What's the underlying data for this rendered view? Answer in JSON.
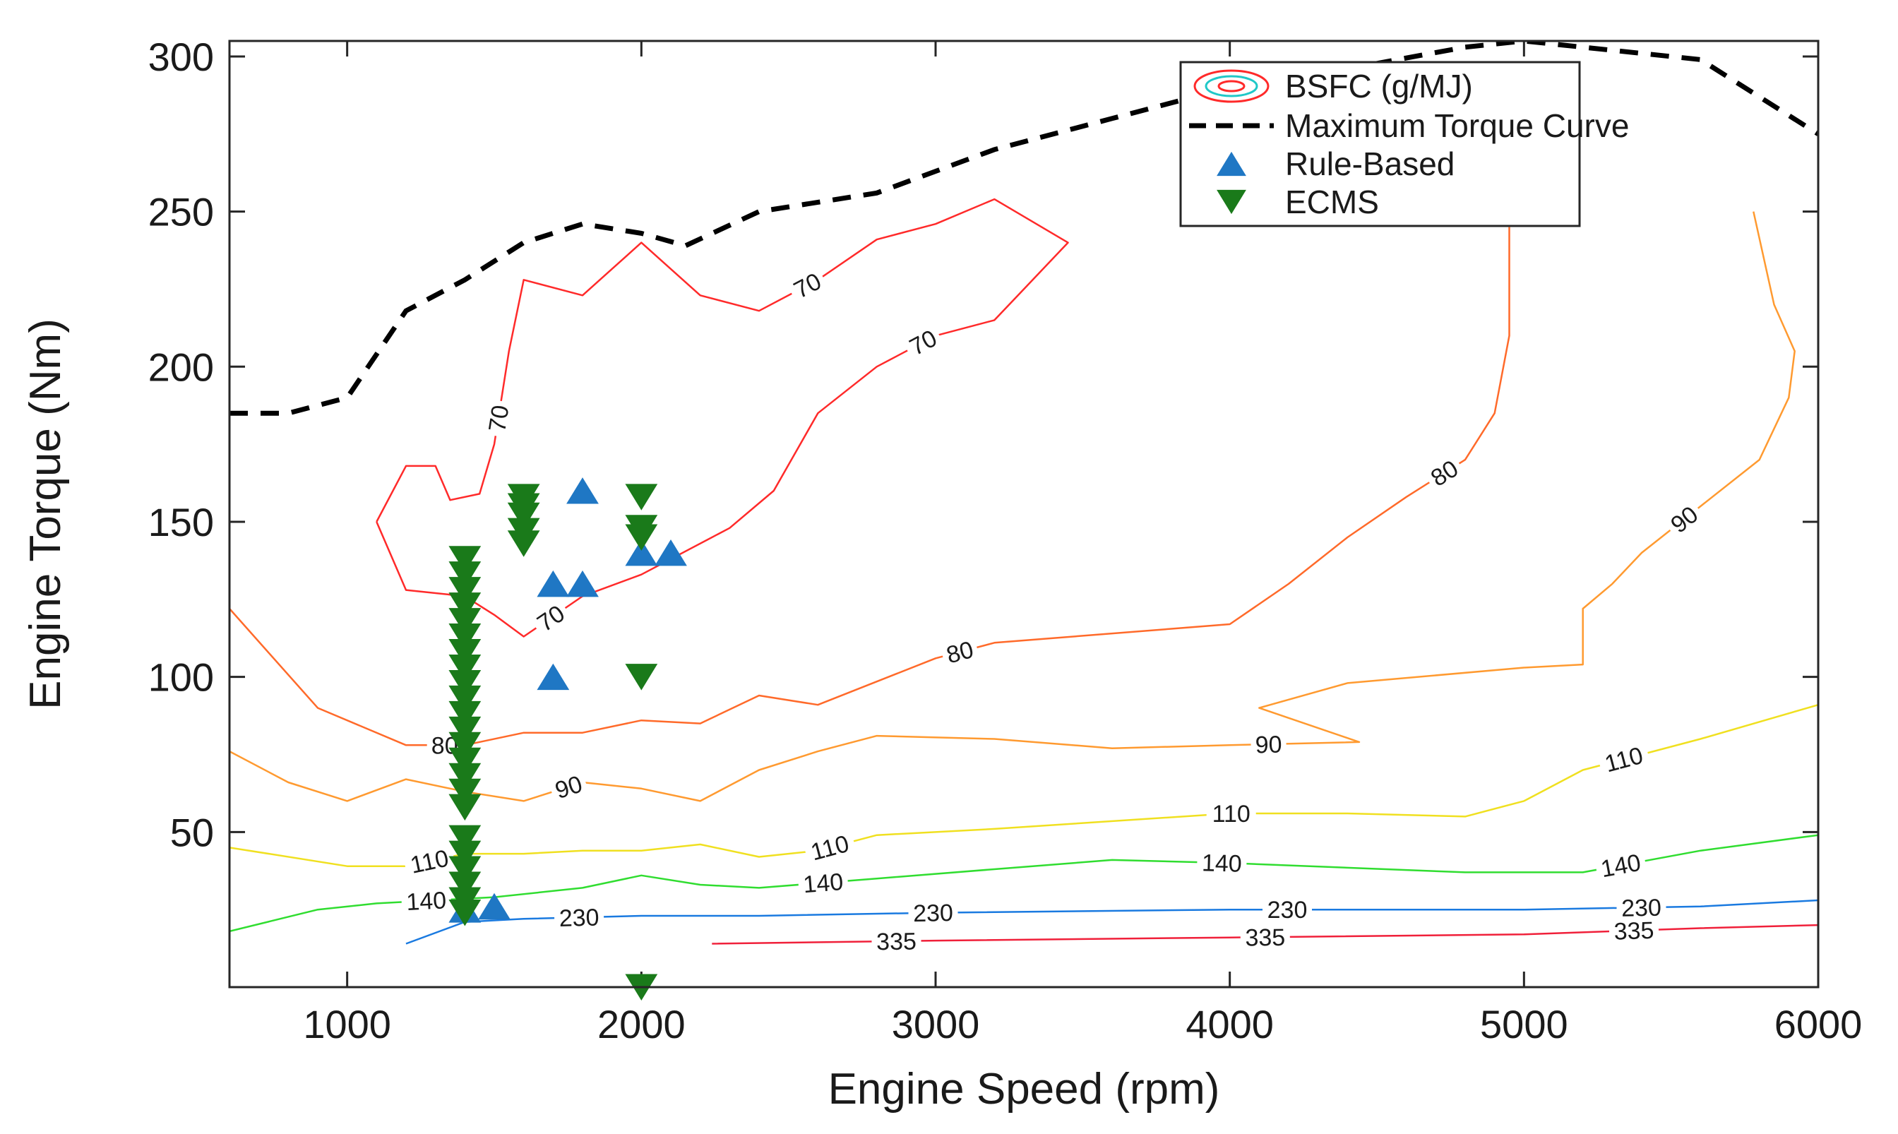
{
  "chart_data": {
    "type": "line",
    "xlabel": "Engine Speed (rpm)",
    "ylabel": "Engine Torque (Nm)",
    "xlim": [
      600,
      6000
    ],
    "ylim": [
      0,
      305
    ],
    "xticks": [
      1000,
      2000,
      3000,
      4000,
      5000,
      6000
    ],
    "yticks": [
      50,
      100,
      150,
      200,
      250,
      300
    ],
    "legend": {
      "position": "top-right",
      "entries": [
        "BSFC (g/MJ)",
        "Maximum Torque Curve",
        "Rule-Based",
        "ECMS"
      ]
    },
    "colors": {
      "max_torque": "#000000",
      "rule_based": "#1f77c4",
      "ecms": "#1a7a1a",
      "contour_70": "#ff2a2a",
      "contour_80": "#ff6a2a",
      "contour_90": "#ff9a30",
      "contour_110": "#f0e020",
      "contour_140": "#30dd30",
      "contour_230": "#1a7ae0",
      "contour_335": "#f0203a"
    },
    "max_torque_curve": [
      [
        600,
        185
      ],
      [
        800,
        185
      ],
      [
        1000,
        190
      ],
      [
        1200,
        218
      ],
      [
        1400,
        228
      ],
      [
        1600,
        240
      ],
      [
        1800,
        246
      ],
      [
        2000,
        243
      ],
      [
        2150,
        239
      ],
      [
        2400,
        250
      ],
      [
        2800,
        256
      ],
      [
        3200,
        270
      ],
      [
        3600,
        280
      ],
      [
        4000,
        290
      ],
      [
        4400,
        296
      ],
      [
        4800,
        303
      ],
      [
        5000,
        305
      ],
      [
        5600,
        299
      ],
      [
        6000,
        275
      ]
    ],
    "contours": [
      {
        "level": "70",
        "labels": [
          "70",
          "70",
          "70",
          "70"
        ],
        "lines": [
          [
            [
              1100,
              150
            ],
            [
              1200,
              168
            ],
            [
              1300,
              168
            ],
            [
              1350,
              157
            ],
            [
              1450,
              159
            ],
            [
              1500,
              175
            ],
            [
              1550,
              205
            ],
            [
              1600,
              228
            ],
            [
              1800,
              223
            ],
            [
              2000,
              240
            ],
            [
              2200,
              223
            ],
            [
              2400,
              218
            ],
            [
              2600,
              228
            ],
            [
              2800,
              241
            ],
            [
              3000,
              246
            ],
            [
              3200,
              254
            ],
            [
              3450,
              240
            ],
            [
              3300,
              225
            ],
            [
              3200,
              215
            ],
            [
              3000,
              210
            ],
            [
              2800,
              200
            ],
            [
              2600,
              185
            ],
            [
              2450,
              160
            ],
            [
              2300,
              148
            ],
            [
              2000,
              133
            ],
            [
              1800,
              126
            ],
            [
              1600,
              113
            ],
            [
              1500,
              120
            ],
            [
              1400,
              126
            ],
            [
              1200,
              128
            ],
            [
              1100,
              150
            ]
          ]
        ]
      },
      {
        "level": "80",
        "labels": [
          "80",
          "80",
          "80"
        ],
        "lines": [
          [
            [
              600,
              122
            ],
            [
              900,
              90
            ],
            [
              1200,
              78
            ],
            [
              1400,
              78
            ],
            [
              1600,
              82
            ],
            [
              1800,
              82
            ],
            [
              2000,
              86
            ],
            [
              2200,
              85
            ],
            [
              2400,
              94
            ],
            [
              2600,
              91
            ],
            [
              3000,
              106
            ],
            [
              3200,
              111
            ],
            [
              4000,
              117
            ],
            [
              4200,
              130
            ],
            [
              4400,
              145
            ],
            [
              4600,
              158
            ],
            [
              4800,
              170
            ],
            [
              4900,
              185
            ],
            [
              4950,
              210
            ],
            [
              4950,
              245
            ]
          ]
        ]
      },
      {
        "level": "90",
        "labels": [
          "90",
          "90",
          "90"
        ],
        "lines": [
          [
            [
              600,
              76
            ],
            [
              800,
              66
            ],
            [
              1000,
              60
            ],
            [
              1200,
              67
            ],
            [
              1400,
              63
            ],
            [
              1600,
              60
            ],
            [
              1800,
              66
            ],
            [
              2000,
              64
            ],
            [
              2200,
              60
            ],
            [
              2400,
              70
            ],
            [
              2600,
              76
            ],
            [
              2800,
              81
            ],
            [
              3200,
              80
            ],
            [
              3600,
              77
            ],
            [
              4000,
              78
            ],
            [
              4440,
              79
            ],
            [
              4100,
              90
            ],
            [
              4400,
              98
            ],
            [
              5000,
              103
            ],
            [
              5200,
              104
            ],
            [
              5200,
              122
            ],
            [
              5300,
              130
            ],
            [
              5400,
              140
            ],
            [
              5600,
              155
            ],
            [
              5800,
              170
            ],
            [
              5900,
              190
            ],
            [
              5920,
              205
            ],
            [
              5850,
              220
            ],
            [
              5780,
              250
            ]
          ]
        ]
      },
      {
        "level": "110",
        "labels": [
          "110",
          "110",
          "110",
          "110"
        ],
        "lines": [
          [
            [
              600,
              45
            ],
            [
              1000,
              39
            ],
            [
              1200,
              39
            ],
            [
              1400,
              43
            ],
            [
              1600,
              43
            ],
            [
              1800,
              44
            ],
            [
              2000,
              44
            ],
            [
              2200,
              46
            ],
            [
              2400,
              42
            ],
            [
              2600,
              44
            ],
            [
              2800,
              49
            ],
            [
              3200,
              51
            ],
            [
              4000,
              56
            ],
            [
              4400,
              56
            ],
            [
              4800,
              55
            ],
            [
              5000,
              60
            ],
            [
              5200,
              70
            ],
            [
              5600,
              80
            ],
            [
              6000,
              91
            ]
          ]
        ]
      },
      {
        "level": "140",
        "labels": [
          "140",
          "140",
          "140",
          "140"
        ],
        "lines": [
          [
            [
              600,
              18
            ],
            [
              900,
              25
            ],
            [
              1100,
              27
            ],
            [
              1300,
              28
            ],
            [
              1500,
              29
            ],
            [
              1800,
              32
            ],
            [
              2000,
              36
            ],
            [
              2200,
              33
            ],
            [
              2400,
              32
            ],
            [
              2800,
              35
            ],
            [
              3200,
              38
            ],
            [
              3600,
              41
            ],
            [
              4000,
              40
            ],
            [
              4800,
              37
            ],
            [
              5200,
              37
            ],
            [
              5600,
              44
            ],
            [
              6000,
              49
            ]
          ]
        ]
      },
      {
        "level": "230",
        "labels": [
          "230",
          "230",
          "230",
          "230"
        ],
        "lines": [
          [
            [
              1200,
              14
            ],
            [
              1400,
              21
            ],
            [
              1600,
              22
            ],
            [
              2000,
              23
            ],
            [
              2400,
              23
            ],
            [
              3000,
              24
            ],
            [
              4000,
              25
            ],
            [
              5000,
              25
            ],
            [
              5600,
              26
            ],
            [
              6000,
              28
            ]
          ]
        ]
      },
      {
        "level": "335",
        "labels": [
          "335",
          "335",
          "335"
        ],
        "lines": [
          [
            [
              2240,
              14
            ],
            [
              3000,
              15
            ],
            [
              4000,
              16
            ],
            [
              5000,
              17
            ],
            [
              5600,
              19
            ],
            [
              6000,
              20
            ]
          ]
        ]
      }
    ],
    "series": [
      {
        "name": "Rule-Based",
        "marker": "triangle-up",
        "points": [
          [
            1400,
            25
          ],
          [
            1500,
            26
          ],
          [
            1700,
            100
          ],
          [
            1700,
            130
          ],
          [
            1800,
            130
          ],
          [
            1800,
            160
          ],
          [
            2000,
            140
          ],
          [
            2100,
            140
          ]
        ]
      },
      {
        "name": "ECMS",
        "marker": "triangle-down",
        "points": [
          [
            1400,
            138
          ],
          [
            1400,
            133
          ],
          [
            1400,
            128
          ],
          [
            1400,
            123
          ],
          [
            1400,
            118
          ],
          [
            1400,
            113
          ],
          [
            1400,
            108
          ],
          [
            1400,
            103
          ],
          [
            1400,
            98
          ],
          [
            1400,
            93
          ],
          [
            1400,
            88
          ],
          [
            1400,
            83
          ],
          [
            1400,
            78
          ],
          [
            1400,
            73
          ],
          [
            1400,
            68
          ],
          [
            1400,
            63
          ],
          [
            1400,
            58
          ],
          [
            1400,
            48
          ],
          [
            1400,
            43
          ],
          [
            1400,
            38
          ],
          [
            1400,
            33
          ],
          [
            1400,
            28
          ],
          [
            1400,
            24
          ],
          [
            1600,
            158
          ],
          [
            1600,
            155
          ],
          [
            1600,
            152
          ],
          [
            1600,
            147
          ],
          [
            1600,
            143
          ],
          [
            2000,
            158
          ],
          [
            2000,
            148
          ],
          [
            2000,
            145
          ],
          [
            2000,
            100
          ],
          [
            2000,
            0
          ]
        ]
      }
    ]
  }
}
